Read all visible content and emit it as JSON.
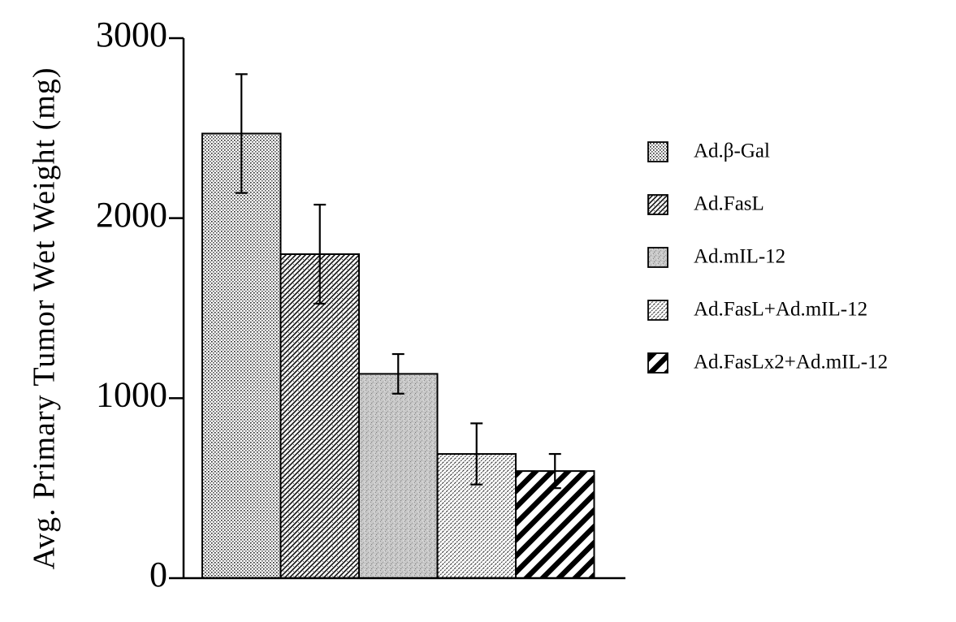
{
  "chart_data": {
    "type": "bar",
    "title": "",
    "xlabel": "",
    "ylabel": "Avg. Primary Tumor Wet Weight (mg)",
    "ylim": [
      0,
      3000
    ],
    "yticks": [
      0,
      1000,
      2000,
      3000
    ],
    "ytick_labels": [
      "0",
      "1000",
      "2000",
      "3000"
    ],
    "grid": false,
    "legend_position": "right",
    "categories": [
      "Ad.β-Gal",
      "Ad.FasL",
      "Ad.mIL-12",
      "Ad.FasL+Ad.mIL-12",
      "Ad.FasLx2+Ad.mIL-12"
    ],
    "values": [
      2470,
      1800,
      1135,
      690,
      595
    ],
    "error_bars": [
      330,
      275,
      110,
      170,
      95
    ],
    "fill_patterns": [
      "fine-dots",
      "diagonal-hatch",
      "gray-stipple",
      "fine-diagonal",
      "bold-stripes"
    ],
    "legend": [
      {
        "label": "Ad.β-Gal",
        "pattern": "fine-dots"
      },
      {
        "label": "Ad.FasL",
        "pattern": "diagonal-hatch"
      },
      {
        "label": "Ad.mIL-12",
        "pattern": "gray-stipple"
      },
      {
        "label": "Ad.FasL+Ad.mIL-12",
        "pattern": "fine-diagonal"
      },
      {
        "label": "Ad.FasLx2+Ad.mIL-12",
        "pattern": "bold-stripes"
      }
    ],
    "colors": {
      "axis": "#000000",
      "bar_edge": "#000000",
      "background": "#ffffff"
    }
  }
}
